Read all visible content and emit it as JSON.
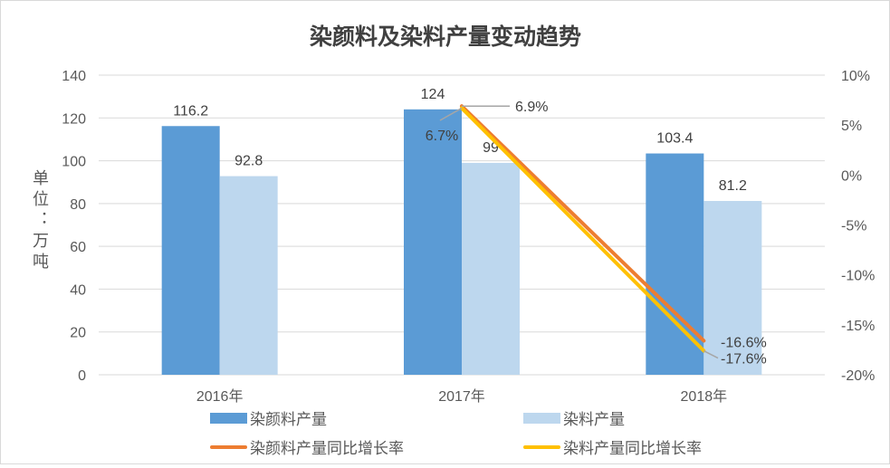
{
  "chart_data": {
    "type": "bar",
    "title": "染颜料及染料产量变动趋势",
    "ylabel": "单位：万吨",
    "ylabel_chars": [
      "单",
      "位",
      ":",
      "万",
      "吨"
    ],
    "categories": [
      "2016年",
      "2017年",
      "2018年"
    ],
    "ylim": [
      0,
      140
    ],
    "yticks": [
      0,
      20,
      40,
      60,
      80,
      100,
      120,
      140
    ],
    "y2lim": [
      -20,
      10
    ],
    "y2ticks": [
      "10%",
      "5%",
      "0%",
      "-5%",
      "-10%",
      "-15%",
      "-20%"
    ],
    "y2tick_values": [
      10,
      5,
      0,
      -5,
      -10,
      -15,
      -20
    ],
    "grid": true,
    "legend_position": "bottom",
    "series": [
      {
        "name": "染颜料产量",
        "kind": "bar",
        "axis": "left",
        "color": "#5B9BD5",
        "values": [
          116.2,
          124,
          103.4
        ],
        "labels": [
          "116.2",
          "124",
          "103.4"
        ]
      },
      {
        "name": "染料产量",
        "kind": "bar",
        "axis": "left",
        "color": "#BDD7EE",
        "values": [
          92.8,
          99,
          81.2
        ],
        "labels": [
          "92.8",
          "99",
          "81.2"
        ]
      },
      {
        "name": "染颜料产量同比增长率",
        "kind": "line",
        "axis": "right",
        "color": "#ED7D31",
        "values": [
          null,
          6.9,
          -16.6
        ],
        "labels": [
          null,
          "6.9%",
          "-16.6%"
        ]
      },
      {
        "name": "染料产量同比增长率",
        "kind": "line",
        "axis": "right",
        "color": "#FFC000",
        "values": [
          null,
          6.7,
          -17.6
        ],
        "labels": [
          null,
          "6.7%",
          "-17.6%"
        ]
      }
    ]
  }
}
